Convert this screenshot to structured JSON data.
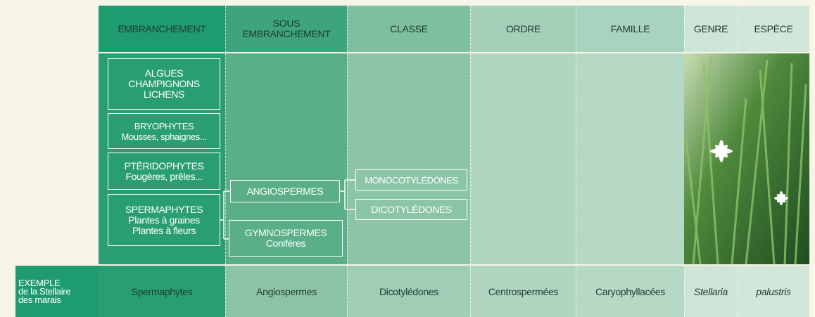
{
  "header": {
    "columns": [
      [
        "EMBRANCHEMENT"
      ],
      [
        "SOUS",
        "EMBRANCHEMENT"
      ],
      [
        "CLASSE"
      ],
      [
        "ORDRE"
      ],
      [
        "FAMILLE"
      ],
      [
        "GENRE"
      ],
      [
        "ESPÈCE"
      ]
    ]
  },
  "embranchement": [
    [
      "ALGUES",
      "CHAMPIGNONS",
      "LICHENS"
    ],
    [
      "BRYOPHYTES",
      "Mousses, sphaignes..."
    ],
    [
      "PTÉRIDOPHYTES",
      "Fougères, prêles..."
    ],
    [
      "SPERMAPHYTES",
      "Plantes à graines",
      "Plantes à fleurs"
    ]
  ],
  "sous_embranchement": [
    [
      "ANGIOSPERMES"
    ],
    [
      "GYMNOSPERMES",
      "Conifères"
    ]
  ],
  "classe": [
    [
      "MONOCOTYLÉDONES"
    ],
    [
      "DICOTYLÉDONES"
    ]
  ],
  "example": {
    "label": [
      "EXEMPLE",
      "de la Stellaire",
      "des marais"
    ],
    "values": [
      "Spermaphytes",
      "Angiospermes",
      "Dicotylédones",
      "Centrospermées",
      "Caryophyllacées",
      "Stellaria",
      "palustris"
    ]
  }
}
